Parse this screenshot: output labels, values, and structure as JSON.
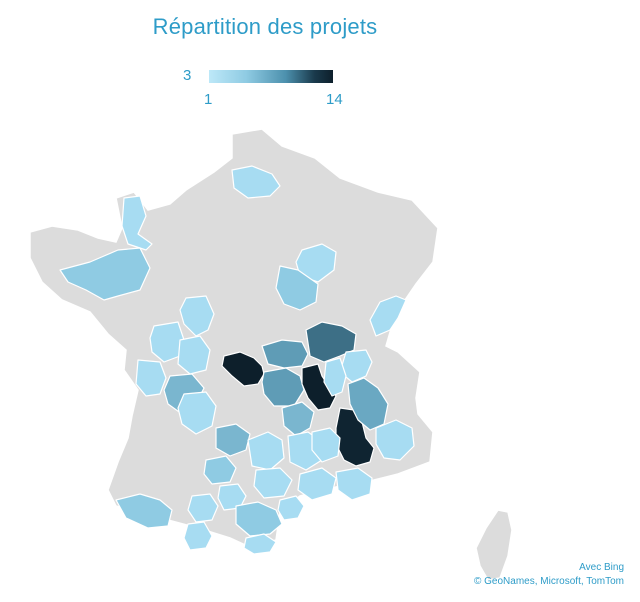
{
  "title": "Répartition des projets",
  "legend": {
    "current": "3",
    "min": "1",
    "max": "14",
    "min_color": "#bde8f8",
    "max_color": "#0d1f2b"
  },
  "base_color": "#dcdcdc",
  "border_color": "#ffffff",
  "credits": {
    "line1": "Avec Bing",
    "line2": "© GeoNames, Microsoft, TomTom"
  },
  "regions": [
    {
      "id": "somme",
      "value": 2,
      "color": "#a7dcf2"
    },
    {
      "id": "calvados",
      "value": 2,
      "color": "#a7dcf2"
    },
    {
      "id": "ile-et-vilaine",
      "value": 3,
      "color": "#8fcbe3"
    },
    {
      "id": "marne",
      "value": 2,
      "color": "#a7dcf2"
    },
    {
      "id": "yonne",
      "value": 3,
      "color": "#8fcbe3"
    },
    {
      "id": "doubs",
      "value": 2,
      "color": "#a7dcf2"
    },
    {
      "id": "indre-et-loire",
      "value": 2,
      "color": "#a7dcf2"
    },
    {
      "id": "maine-et-loire",
      "value": 2,
      "color": "#a7dcf2"
    },
    {
      "id": "vendee",
      "value": 2,
      "color": "#a7dcf2"
    },
    {
      "id": "vienne",
      "value": 2,
      "color": "#a7dcf2"
    },
    {
      "id": "charente",
      "value": 4,
      "color": "#7ab6cf"
    },
    {
      "id": "indre",
      "value": 14,
      "color": "#0d1f2b"
    },
    {
      "id": "cher",
      "value": 6,
      "color": "#5f9cb6"
    },
    {
      "id": "saone-et-loire",
      "value": 9,
      "color": "#3d6f86"
    },
    {
      "id": "creuse",
      "value": 6,
      "color": "#5f9cb6"
    },
    {
      "id": "allier",
      "value": 14,
      "color": "#0d1f2b"
    },
    {
      "id": "ain",
      "value": 2,
      "color": "#a7dcf2"
    },
    {
      "id": "rhone",
      "value": 2,
      "color": "#a7dcf2"
    },
    {
      "id": "puy-de-dome",
      "value": 4,
      "color": "#7ab6cf"
    },
    {
      "id": "loire",
      "value": 13,
      "color": "#0f2431"
    },
    {
      "id": "isere",
      "value": 5,
      "color": "#6aa8c2"
    },
    {
      "id": "dordogne",
      "value": 2,
      "color": "#a7dcf2"
    },
    {
      "id": "correze",
      "value": 4,
      "color": "#7ab6cf"
    },
    {
      "id": "cantal",
      "value": 2,
      "color": "#a7dcf2"
    },
    {
      "id": "haute-loire",
      "value": 2,
      "color": "#a7dcf2"
    },
    {
      "id": "drome",
      "value": 2,
      "color": "#a7dcf2"
    },
    {
      "id": "lot",
      "value": 3,
      "color": "#8fcbe3"
    },
    {
      "id": "aveyron",
      "value": 2,
      "color": "#a7dcf2"
    },
    {
      "id": "gard",
      "value": 2,
      "color": "#a7dcf2"
    },
    {
      "id": "vaucluse",
      "value": 2,
      "color": "#a7dcf2"
    },
    {
      "id": "hautes-alpes",
      "value": 2,
      "color": "#a7dcf2"
    },
    {
      "id": "gers",
      "value": 2,
      "color": "#a7dcf2"
    },
    {
      "id": "tarn",
      "value": 2,
      "color": "#a7dcf2"
    },
    {
      "id": "pyrenees-atlantiques",
      "value": 3,
      "color": "#8fcbe3"
    },
    {
      "id": "haute-garonne",
      "value": 2,
      "color": "#a7dcf2"
    },
    {
      "id": "aude",
      "value": 3,
      "color": "#8fcbe3"
    },
    {
      "id": "pyrenees-orientales",
      "value": 2,
      "color": "#a7dcf2"
    },
    {
      "id": "herault",
      "value": 2,
      "color": "#a7dcf2"
    }
  ]
}
